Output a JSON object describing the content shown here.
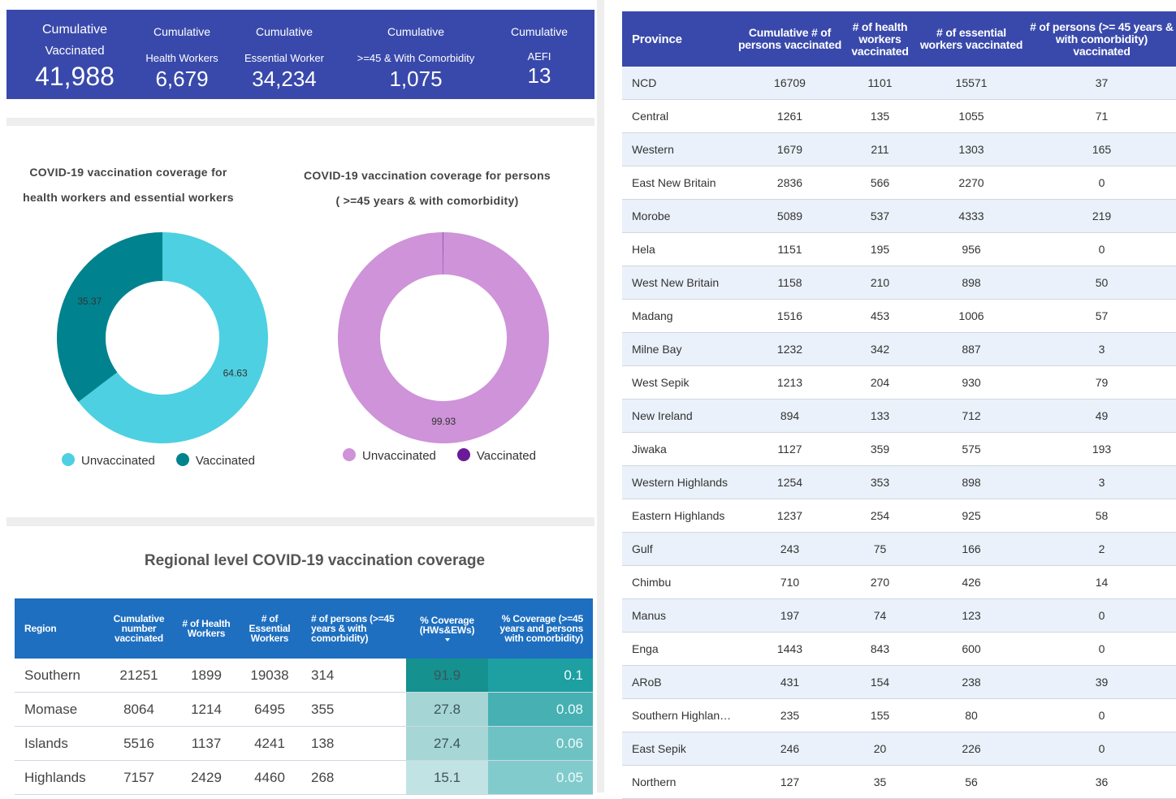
{
  "kpis": [
    {
      "title": "Cumulative",
      "subtitle": "Vaccinated",
      "value": "41,988"
    },
    {
      "title": "Cumulative",
      "subtitle": "Health Workers",
      "value": "6,679"
    },
    {
      "title": "Cumulative",
      "subtitle": "Essential Worker",
      "value": "34,234"
    },
    {
      "title": "Cumulative",
      "subtitle": ">=45 & With Comorbidity",
      "value": "1,075"
    },
    {
      "title": "Cumulative",
      "subtitle": "AEFI",
      "value": "13"
    }
  ],
  "chart_data": [
    {
      "type": "pie",
      "donut": true,
      "title": "COVID-19 vaccination coverage for health workers and essential workers",
      "categories": [
        "Unvaccinated",
        "Vaccinated"
      ],
      "values": [
        64.63,
        35.37
      ],
      "colors": [
        "#4dd0e1",
        "#00838f"
      ],
      "legend": "bottom"
    },
    {
      "type": "pie",
      "donut": true,
      "title": "COVID-19 vaccination coverage for persons ( >=45 years & with comorbidity)",
      "categories": [
        "Unvaccinated",
        "Vaccinated"
      ],
      "values": [
        99.93,
        0.07
      ],
      "colors": [
        "#ce93d8",
        "#6a1b9a"
      ],
      "legend": "bottom"
    }
  ],
  "regional_table": {
    "title": "Regional level COVID-19 vaccination coverage",
    "columns": [
      "Region",
      "Cumulative number vaccinated",
      "# of Health Workers",
      "# of Essential Workers",
      "# of persons (>=45 years & with comorbidity)",
      "% Coverage (HWs&EWs)",
      "% Coverage (>=45 years and persons with comorbidity)"
    ],
    "rows": [
      [
        "Southern",
        21251,
        1899,
        19038,
        314,
        91.9,
        0.1
      ],
      [
        "Momase",
        8064,
        1214,
        6495,
        355,
        27.8,
        0.08
      ],
      [
        "Islands",
        5516,
        1137,
        4241,
        138,
        27.4,
        0.06
      ],
      [
        "Highlands",
        7157,
        2429,
        4460,
        268,
        15.1,
        0.05
      ]
    ]
  },
  "province_table": {
    "columns": [
      "Province",
      "Cumulative # of persons vaccinated",
      "# of health workers vaccinated",
      "# of essential workers vaccinated",
      "# of persons (>= 45 years & with comorbidity) vaccinated"
    ],
    "rows": [
      [
        "NCD",
        16709,
        1101,
        15571,
        37
      ],
      [
        "Central",
        1261,
        135,
        1055,
        71
      ],
      [
        "Western",
        1679,
        211,
        1303,
        165
      ],
      [
        "East New Britain",
        2836,
        566,
        2270,
        0
      ],
      [
        "Morobe",
        5089,
        537,
        4333,
        219
      ],
      [
        "Hela",
        1151,
        195,
        956,
        0
      ],
      [
        "West New Britain",
        1158,
        210,
        898,
        50
      ],
      [
        "Madang",
        1516,
        453,
        1006,
        57
      ],
      [
        "Milne Bay",
        1232,
        342,
        887,
        3
      ],
      [
        "West Sepik",
        1213,
        204,
        930,
        79
      ],
      [
        "New Ireland",
        894,
        133,
        712,
        49
      ],
      [
        "Jiwaka",
        1127,
        359,
        575,
        193
      ],
      [
        "Western Highlands",
        1254,
        353,
        898,
        3
      ],
      [
        "Eastern Highlands",
        1237,
        254,
        925,
        58
      ],
      [
        "Gulf",
        243,
        75,
        166,
        2
      ],
      [
        "Chimbu",
        710,
        270,
        426,
        14
      ],
      [
        "Manus",
        197,
        74,
        123,
        0
      ],
      [
        "Enga",
        1443,
        843,
        600,
        0
      ],
      [
        "ARoB",
        431,
        154,
        238,
        39
      ],
      [
        "Southern Highlan…",
        235,
        155,
        80,
        0
      ],
      [
        "East Sepik",
        246,
        20,
        226,
        0
      ],
      [
        "Northern",
        127,
        35,
        56,
        36
      ]
    ]
  }
}
